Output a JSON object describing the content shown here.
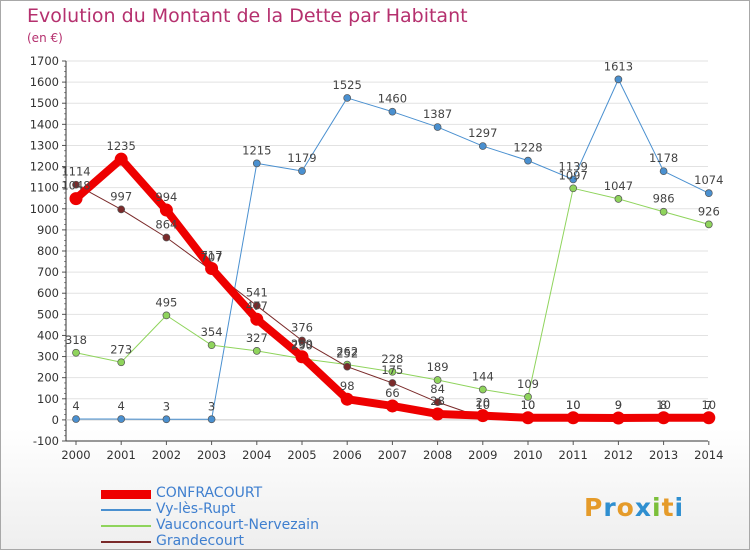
{
  "title": "Evolution du Montant de la Dette par Habitant",
  "subtitle": "(en €)",
  "brand": {
    "text": "Proxiti",
    "letter_colors": [
      "#e59b2a",
      "#2f8fd0",
      "#e59b2a",
      "#2f8fd0",
      "#7bbf3a",
      "#e59b2a",
      "#2f8fd0"
    ]
  },
  "chart_data": {
    "type": "line",
    "title": "Evolution du Montant de la Dette par Habitant",
    "subtitle": "(en €)",
    "xlabel": "",
    "ylabel": "",
    "x": [
      "2000",
      "2001",
      "2002",
      "2003",
      "2004",
      "2005",
      "2006",
      "2007",
      "2008",
      "2009",
      "2010",
      "2011",
      "2012",
      "2013",
      "2014"
    ],
    "ylim": [
      -100,
      1700
    ],
    "yticks": [
      -100,
      0,
      100,
      200,
      300,
      400,
      500,
      600,
      700,
      800,
      900,
      1000,
      1100,
      1200,
      1300,
      1400,
      1500,
      1600,
      1700
    ],
    "grid": true,
    "legend_position": "bottom-left",
    "series": [
      {
        "name": "Vy-lès-Rupt",
        "color": "#4a90d0",
        "stroke": 1,
        "marker": 3.5,
        "values": [
          4,
          4,
          3,
          3,
          1215,
          1179,
          1525,
          1460,
          1387,
          1297,
          1228,
          1139,
          1613,
          1178,
          1074
        ],
        "labels": [
          "4",
          "4",
          "3",
          "3",
          "1215",
          "1179",
          "1525",
          "1460",
          "1387",
          "1297",
          "1228",
          "1139",
          "1613",
          "1178",
          "1074"
        ]
      },
      {
        "name": "Vauconcourt-Nervezain",
        "color": "#8fd45c",
        "stroke": 1,
        "marker": 3.5,
        "values": [
          318,
          273,
          495,
          354,
          327,
          290,
          262,
          228,
          189,
          144,
          109,
          1097,
          1047,
          986,
          926
        ],
        "labels": [
          "318",
          "273",
          "495",
          "354",
          "327",
          "290",
          "262",
          "228",
          "189",
          "144",
          "109",
          "1097",
          "1047",
          "986",
          "926"
        ]
      },
      {
        "name": "Grandecourt",
        "color": "#7a2a2a",
        "stroke": 1,
        "marker": 3.5,
        "values": [
          1114,
          997,
          864,
          707,
          541,
          376,
          252,
          175,
          84,
          10,
          10,
          10,
          9,
          8,
          7
        ],
        "labels": [
          "1114",
          "997",
          "864",
          "707",
          "541",
          "376",
          "252",
          "175",
          "84",
          "10",
          "10",
          "10",
          "9",
          "8",
          "7"
        ]
      },
      {
        "name": "CONFRACOURT",
        "color": "#ee0000",
        "stroke": 8,
        "marker": 6,
        "values": [
          1048,
          1235,
          994,
          717,
          477,
          299,
          98,
          66,
          28,
          20,
          10,
          10,
          9,
          10,
          10
        ],
        "labels": [
          "1048",
          "1235",
          "994",
          "717",
          "477",
          "299",
          "98",
          "66",
          "28",
          "20",
          "10",
          "10",
          "9",
          "10",
          "10"
        ]
      }
    ],
    "legend": [
      "CONFRACOURT",
      "Vy-lès-Rupt",
      "Vauconcourt-Nervezain",
      "Grandecourt"
    ]
  }
}
